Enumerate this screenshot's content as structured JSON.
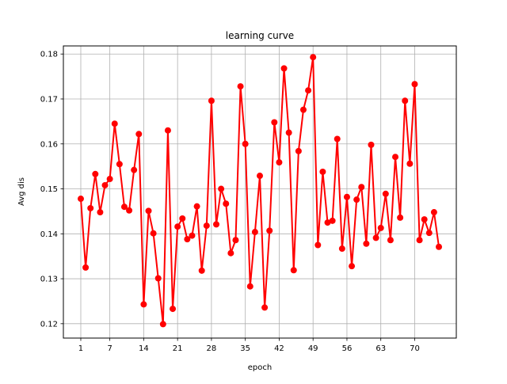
{
  "chart_data": {
    "type": "line",
    "title": "learning curve",
    "xlabel": "epoch",
    "ylabel": "Avg dis",
    "xlim": [
      -2.6,
      78.6
    ],
    "ylim": [
      0.1168,
      0.1818
    ],
    "xticks": [
      1,
      7,
      14,
      21,
      28,
      35,
      42,
      49,
      56,
      63,
      70
    ],
    "yticks": [
      0.12,
      0.13,
      0.14,
      0.15,
      0.16,
      0.17,
      0.18
    ],
    "ytick_labels": [
      "0.12",
      "0.13",
      "0.14",
      "0.15",
      "0.16",
      "0.17",
      "0.18"
    ],
    "grid": true,
    "series": [
      {
        "color": "#ff0000",
        "marker": "circle",
        "x": [
          1,
          2,
          3,
          4,
          5,
          6,
          7,
          8,
          9,
          10,
          11,
          12,
          13,
          14,
          15,
          16,
          17,
          18,
          19,
          20,
          21,
          22,
          23,
          24,
          25,
          26,
          27,
          28,
          29,
          30,
          31,
          32,
          33,
          34,
          35,
          36,
          37,
          38,
          39,
          40,
          41,
          42,
          43,
          44,
          45,
          46,
          47,
          48,
          49,
          50,
          51,
          52,
          53,
          54,
          55,
          56,
          57,
          58,
          59,
          60,
          61,
          62,
          63,
          64,
          65,
          66,
          67,
          68,
          69,
          70,
          71,
          72,
          73,
          74,
          75
        ],
        "y": [
          0.1478,
          0.1325,
          0.1457,
          0.1533,
          0.1448,
          0.1508,
          0.1522,
          0.1645,
          0.1555,
          0.146,
          0.1452,
          0.1542,
          0.1622,
          0.1243,
          0.1451,
          0.1401,
          0.1301,
          0.1199,
          0.163,
          0.1233,
          0.1416,
          0.1434,
          0.1388,
          0.1396,
          0.1461,
          0.1318,
          0.1418,
          0.1696,
          0.1421,
          0.15,
          0.1467,
          0.1357,
          0.1386,
          0.1728,
          0.16,
          0.1283,
          0.1404,
          0.1529,
          0.1236,
          0.1407,
          0.1648,
          0.1559,
          0.1768,
          0.1625,
          0.1319,
          0.1584,
          0.1676,
          0.1719,
          0.1793,
          0.1375,
          0.1538,
          0.1425,
          0.1429,
          0.1611,
          0.1367,
          0.1482,
          0.1328,
          0.1476,
          0.1504,
          0.1378,
          0.1598,
          0.1391,
          0.1413,
          0.1489,
          0.1386,
          0.1571,
          0.1436,
          0.1696,
          0.1556,
          0.1733,
          0.1386,
          0.1432,
          0.1402,
          0.1448,
          0.1371
        ]
      }
    ]
  }
}
